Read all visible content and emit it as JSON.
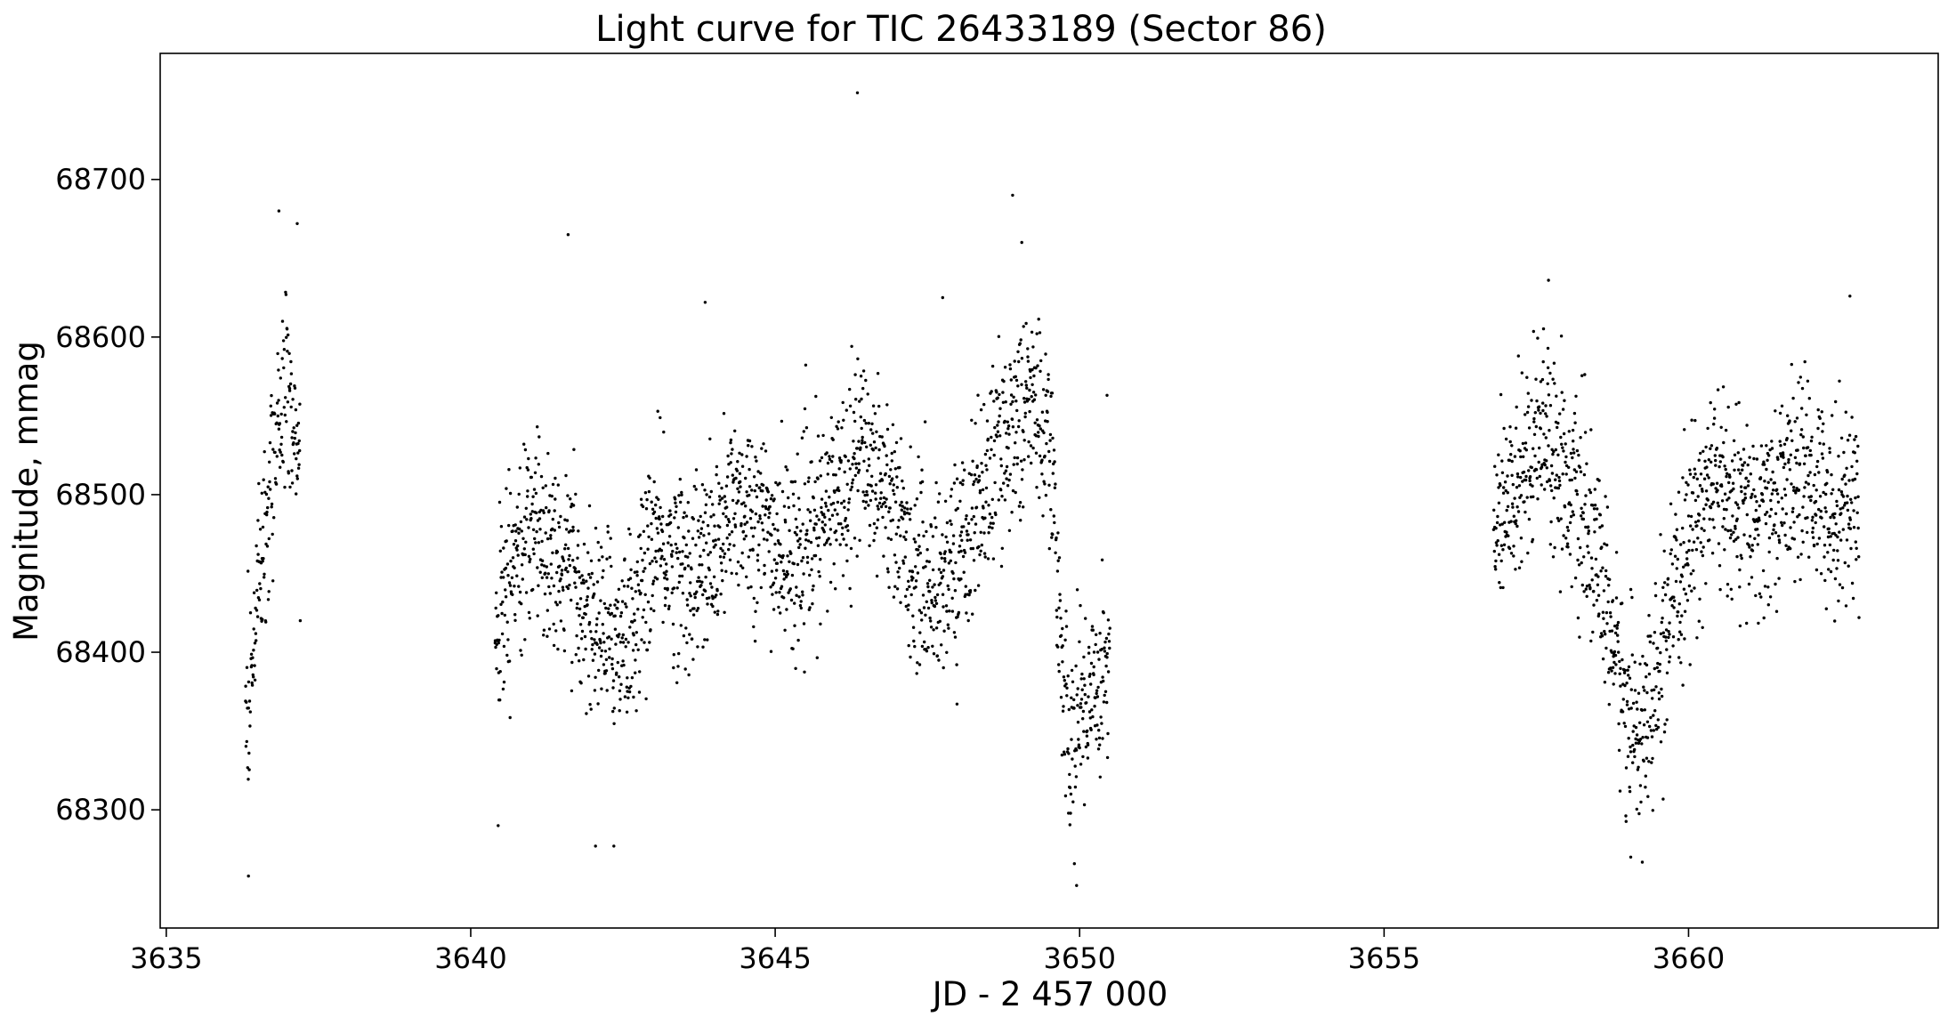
{
  "chart_data": {
    "type": "scatter",
    "title": "Light curve for TIC 26433189 (Sector 86)",
    "xlabel": "JD - 2 457 000",
    "ylabel": "Magnitude, mmag",
    "xlim": [
      3634.9,
      3664.1
    ],
    "ylim": [
      68225,
      68780
    ],
    "x_ticks": [
      3635,
      3640,
      3645,
      3650,
      3655,
      3660
    ],
    "x_tick_labels": [
      "3635",
      "3640",
      "3645",
      "3650",
      "3655",
      "3660"
    ],
    "y_ticks": [
      68300,
      68400,
      68500,
      68600,
      68700
    ],
    "y_tick_labels": [
      "68300",
      "68400",
      "68500",
      "68600",
      "68700"
    ],
    "grid": false,
    "marker_color": "#000000",
    "series": [
      {
        "trend_x": [
          3636.3,
          3636.5,
          3636.8,
          3637.0,
          3637.2,
          3640.4,
          3640.7,
          3641.0,
          3641.3,
          3641.6,
          3642.0,
          3642.4,
          3642.7,
          3643.0,
          3643.3,
          3643.6,
          3644.0,
          3644.4,
          3644.8,
          3645.2,
          3645.6,
          3646.0,
          3646.4,
          3646.8,
          3647.2,
          3647.6,
          3648.0,
          3648.4,
          3648.8,
          3649.2,
          3649.5,
          3649.8,
          3650.1,
          3650.5,
          3656.8,
          3657.2,
          3657.6,
          3658.0,
          3658.4,
          3658.7,
          3659.0,
          3659.3,
          3659.6,
          3660.0,
          3660.4,
          3660.8,
          3661.2,
          3661.6,
          3662.0,
          3662.4,
          3662.8
        ],
        "trend_y": [
          68360,
          68440,
          68540,
          68570,
          68520,
          68410,
          68450,
          68480,
          68470,
          68450,
          68420,
          68410,
          68420,
          68470,
          68460,
          68450,
          68460,
          68500,
          68480,
          68460,
          68470,
          68500,
          68530,
          68510,
          68460,
          68440,
          68460,
          68500,
          68540,
          68560,
          68540,
          68340,
          68370,
          68400,
          68470,
          68510,
          68550,
          68510,
          68470,
          68420,
          68360,
          68350,
          68400,
          68470,
          68510,
          68490,
          68480,
          68510,
          68510,
          68490,
          68500
        ],
        "scatter_mmag": 30,
        "sampling_days": 0.005,
        "outliers": [
          [
            3646.35,
            68755
          ],
          [
            3648.9,
            68690
          ],
          [
            3636.85,
            68680
          ],
          [
            3637.15,
            68672
          ],
          [
            3641.6,
            68665
          ],
          [
            3649.05,
            68660
          ],
          [
            3643.85,
            68622
          ],
          [
            3647.75,
            68625
          ],
          [
            3657.7,
            68636
          ],
          [
            3662.65,
            68626
          ],
          [
            3636.35,
            68258
          ],
          [
            3649.95,
            68252
          ],
          [
            3659.05,
            68270
          ],
          [
            3642.35,
            68277
          ],
          [
            3642.05,
            68277
          ],
          [
            3640.45,
            68290
          ],
          [
            3650.45,
            68563
          ],
          [
            3642.8,
            68497
          ],
          [
            3662.8,
            68422
          ],
          [
            3637.2,
            68420
          ]
        ]
      }
    ]
  }
}
